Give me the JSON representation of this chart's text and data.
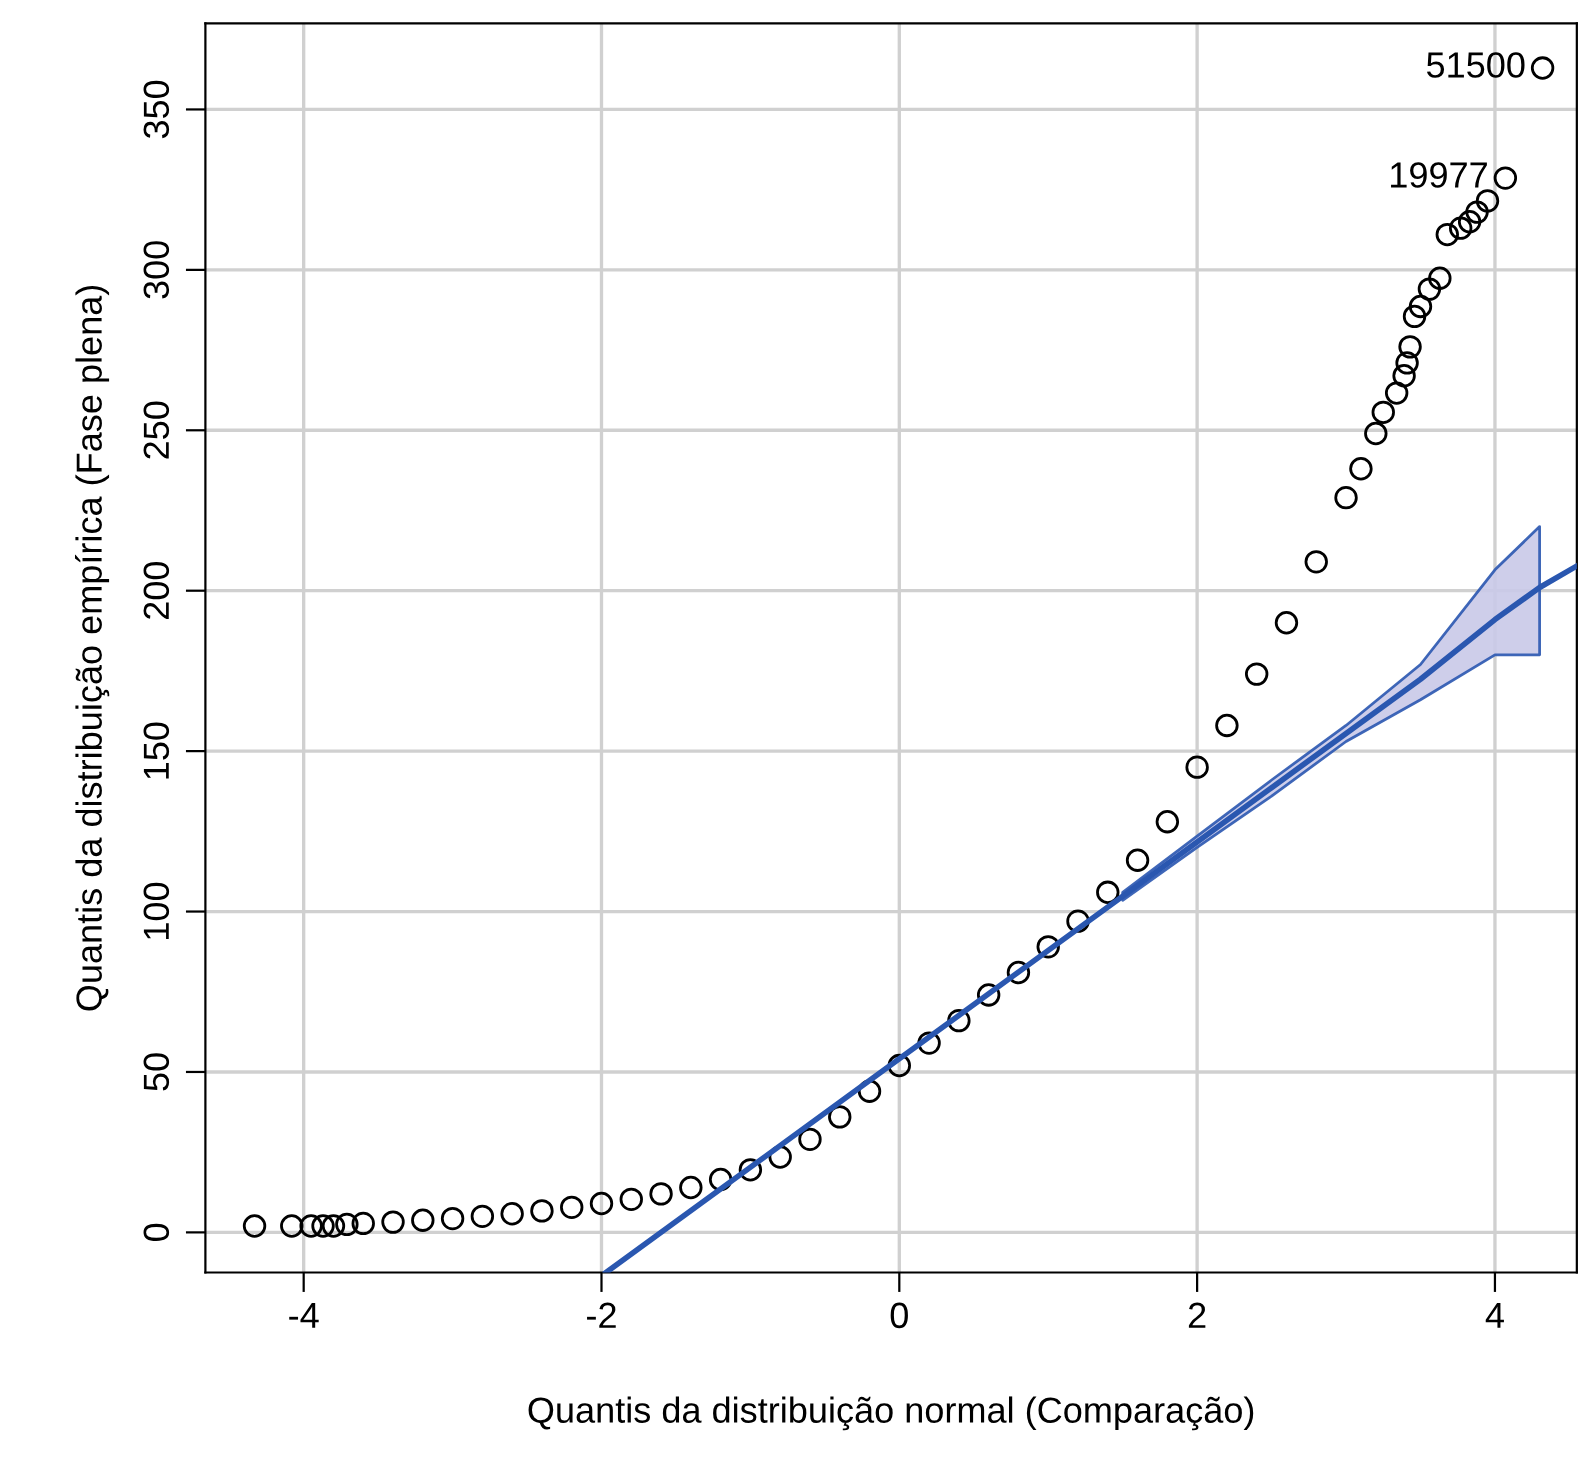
{
  "chart_data": {
    "type": "scatter",
    "xlabel": "Quantis da distribuição normal (Comparação)",
    "ylabel": "Quantis da distribuição empírica (Fase plena)",
    "xlim": [
      -4.66,
      4.55
    ],
    "ylim": [
      -12.5,
      376.8
    ],
    "xticks": [
      -4,
      -2,
      0,
      2,
      4
    ],
    "yticks": [
      0,
      50,
      100,
      150,
      200,
      250,
      300,
      350
    ],
    "grid": true,
    "series": [
      {
        "color": "#000000",
        "marker": "circle",
        "x": [
          -4.33,
          -4.08,
          -3.95,
          -3.87,
          -3.8,
          -3.71,
          -3.6,
          -3.4,
          -3.2,
          -3.0,
          -2.8,
          -2.6,
          -2.4,
          -2.2,
          -2.0,
          -1.8,
          -1.6,
          -1.4,
          -1.2,
          -1.0,
          -0.8,
          -0.6,
          -0.4,
          -0.2,
          0,
          0.2,
          0.4,
          0.6,
          0.8,
          1.0,
          1.2,
          1.4,
          1.6,
          1.8,
          2.0,
          2.2,
          2.4,
          2.6,
          2.8,
          3.0,
          3.1,
          3.2,
          3.25,
          3.34,
          3.39,
          3.41,
          3.43,
          3.46,
          3.5,
          3.56,
          3.63,
          3.68,
          3.77,
          3.83,
          3.88,
          3.95,
          4.07,
          4.32
        ],
        "values": [
          2,
          2,
          2,
          2,
          2,
          2.5,
          2.8,
          3.2,
          3.8,
          4.3,
          5.0,
          5.8,
          6.7,
          7.8,
          9,
          10.3,
          12,
          14,
          16.5,
          19.5,
          23.5,
          29,
          36,
          44,
          52,
          59,
          66,
          74,
          81,
          89,
          97,
          106,
          116,
          128,
          145,
          158,
          174,
          190,
          209,
          229,
          238,
          249,
          255.6,
          261.6,
          267,
          271,
          276,
          285.5,
          288.6,
          294,
          297.4,
          311,
          313,
          315,
          318,
          321.5,
          328.6,
          362.9
        ]
      },
      {
        "type": "line",
        "color": "#2a57b0",
        "x": [
          -1.97,
          0,
          1.5,
          2,
          2.5,
          3,
          3.5,
          4,
          4.3,
          4.55
        ],
        "values": [
          -12.5,
          54.1,
          104.8,
          121.7,
          138.6,
          155.5,
          172.4,
          191,
          201,
          207.7
        ],
        "lower": [
          null,
          null,
          103.5,
          120,
          136,
          153,
          166,
          180,
          180,
          null
        ],
        "upper": [
          null,
          null,
          106,
          123.5,
          141,
          158,
          177,
          206.5,
          220,
          null
        ]
      }
    ],
    "annotations": [
      {
        "text": "51500",
        "x": 4.32,
        "y": 362.9
      },
      {
        "text": "19977",
        "x": 4.07,
        "y": 328.6
      }
    ]
  }
}
